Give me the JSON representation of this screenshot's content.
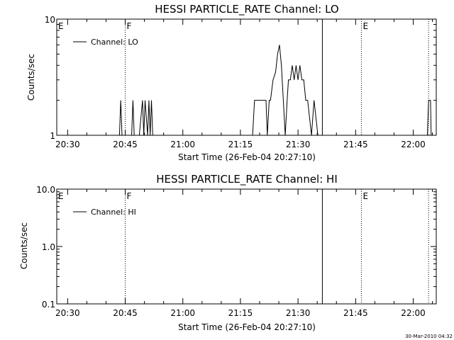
{
  "footer": {
    "timestamp": "30-Mar-2010 04:32"
  },
  "chart_data": [
    {
      "type": "line",
      "title": "HESSI PARTICLE_RATE Channel: LO",
      "xlabel": "Start Time (26-Feb-04 20:27:10)",
      "ylabel": "Counts/sec",
      "yscale": "log",
      "xlim": [
        "20:27:10",
        "22:06:00"
      ],
      "ylim": [
        1,
        10
      ],
      "xticks": [
        "20:30",
        "20:45",
        "21:00",
        "21:15",
        "21:30",
        "21:45",
        "22:00"
      ],
      "yticks": [
        "1",
        "10"
      ],
      "legend": {
        "position": "top-left",
        "entries": [
          "Channel: LO"
        ]
      },
      "markers": [
        {
          "time": "20:27:10",
          "label": "E",
          "style": "none"
        },
        {
          "time": "20:45:00",
          "label": "F",
          "style": "dotted"
        },
        {
          "time": "21:36:20",
          "label": "",
          "style": "solid"
        },
        {
          "time": "21:46:30",
          "label": "E",
          "style": "dotted"
        },
        {
          "time": "22:04:00",
          "label": "",
          "style": "dotted"
        }
      ],
      "series": [
        {
          "name": "Channel: LO",
          "x": [
            "20:27:10",
            "20:43:30",
            "20:43:50",
            "20:44:10",
            "20:45:00",
            "20:46:40",
            "20:47:00",
            "20:47:20",
            "20:48:40",
            "20:49:30",
            "20:49:50",
            "20:50:10",
            "20:50:50",
            "20:51:10",
            "20:51:30",
            "20:51:50",
            "20:52:10",
            "20:53:20",
            "21:18:10",
            "21:18:40",
            "21:21:40",
            "21:22:00",
            "21:22:30",
            "21:22:50",
            "21:23:30",
            "21:24:10",
            "21:24:40",
            "21:25:10",
            "21:25:40",
            "21:26:10",
            "21:26:40",
            "21:27:10",
            "21:27:30",
            "21:28:00",
            "21:28:30",
            "21:29:00",
            "21:29:30",
            "21:30:00",
            "21:30:30",
            "21:31:00",
            "21:31:30",
            "21:32:00",
            "21:32:30",
            "21:33:30",
            "21:34:10",
            "21:35:10",
            "21:36:20",
            "22:03:40",
            "22:04:00",
            "22:04:30",
            "22:04:40"
          ],
          "values": [
            1,
            1,
            2,
            1,
            1,
            1,
            2,
            1,
            1,
            2,
            1,
            2,
            1,
            2,
            1,
            2,
            1,
            1,
            1,
            2,
            2,
            1,
            2,
            2,
            3,
            3.5,
            5,
            6,
            4,
            2,
            1,
            2,
            3,
            3,
            4,
            3,
            4,
            3,
            4,
            3,
            3,
            2,
            2,
            1,
            2,
            1,
            1,
            1,
            2,
            2,
            1
          ]
        }
      ]
    },
    {
      "type": "line",
      "title": "HESSI PARTICLE_RATE Channel: HI",
      "xlabel": "Start Time (26-Feb-04 20:27:10)",
      "ylabel": "Counts/sec",
      "yscale": "log",
      "xlim": [
        "20:27:10",
        "22:06:00"
      ],
      "ylim": [
        0.1,
        10
      ],
      "xticks": [
        "20:30",
        "20:45",
        "21:00",
        "21:15",
        "21:30",
        "21:45",
        "22:00"
      ],
      "yticks": [
        "0.1",
        "1.0",
        "10.0"
      ],
      "legend": {
        "position": "top-left",
        "entries": [
          "Channel: HI"
        ]
      },
      "markers": [
        {
          "time": "20:27:10",
          "label": "E",
          "style": "none"
        },
        {
          "time": "20:45:00",
          "label": "F",
          "style": "dotted"
        },
        {
          "time": "21:36:20",
          "label": "",
          "style": "solid"
        },
        {
          "time": "21:46:30",
          "label": "E",
          "style": "dotted"
        },
        {
          "time": "22:04:00",
          "label": "",
          "style": "dotted"
        }
      ],
      "series": [
        {
          "name": "Channel: HI",
          "x": [],
          "values": []
        }
      ]
    }
  ]
}
